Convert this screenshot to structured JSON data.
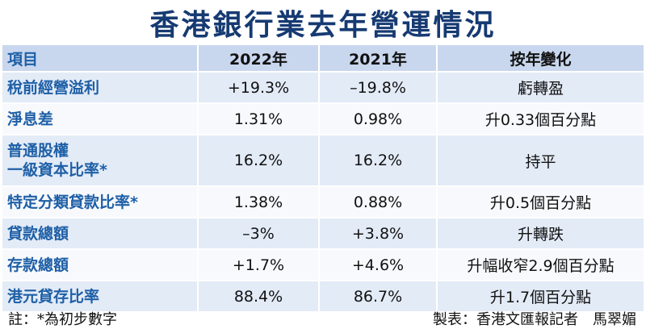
{
  "title": "香港銀行業去年營運情況",
  "header": {
    "item": "項目",
    "y2022": "2022年",
    "y2021": "2021年",
    "change": "按年變化"
  },
  "rows": [
    {
      "label": "稅前經營溢利",
      "y2022": "+19.3%",
      "y2021": "–19.8%",
      "change": "虧轉盈"
    },
    {
      "label": "淨息差",
      "y2022": "1.31%",
      "y2021": "0.98%",
      "change": "升0.33個百分點"
    },
    {
      "label_line1": "普通股權",
      "label_line2": "一級資本比率*",
      "y2022": "16.2%",
      "y2021": "16.2%",
      "change": "持平"
    },
    {
      "label": "特定分類貸款比率*",
      "y2022": "1.38%",
      "y2021": "0.88%",
      "change": "升0.5個百分點"
    },
    {
      "label": "貸款總額",
      "y2022": "–3%",
      "y2021": "+3.8%",
      "change": "升轉跌"
    },
    {
      "label": "存款總額",
      "y2022": "+1.7%",
      "y2021": "+4.6%",
      "change": "升幅收窄2.9個百分點"
    },
    {
      "label": "港元貸存比率",
      "y2022": "88.4%",
      "y2021": "86.7%",
      "change": "升1.7個百分點"
    }
  ],
  "footer": {
    "note": "註：*為初步數字",
    "credit": "製表：香港文匯報記者　馬翠媚"
  }
}
